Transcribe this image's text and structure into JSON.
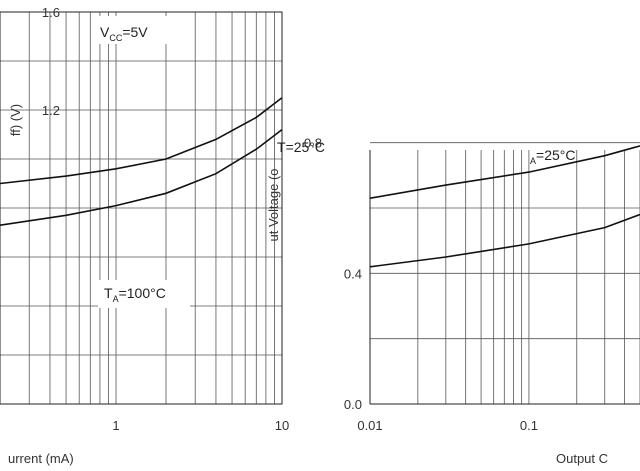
{
  "chart_data": [
    {
      "type": "line",
      "xscale": "log",
      "xlim": [
        0.2,
        10
      ],
      "ylim": [
        0.0,
        1.6
      ],
      "x_tick_labels": [
        "1",
        "10"
      ],
      "y_tick_labels": [
        "1.6",
        "1.2"
      ],
      "xlabel": "urrent (mA)",
      "ylabel": "ff) (V)",
      "annotations": [
        {
          "main": "V",
          "sub": "CC",
          "rest": "=5V"
        },
        {
          "main": "T",
          "sub": "A",
          "rest": "=100°C"
        }
      ],
      "series": [
        {
          "x": [
            0.2,
            0.5,
            1,
            2,
            4,
            7,
            10
          ],
          "y": [
            0.9,
            0.93,
            0.96,
            1.0,
            1.08,
            1.17,
            1.25
          ]
        },
        {
          "x": [
            0.2,
            0.5,
            1,
            2,
            4,
            7,
            10
          ],
          "y": [
            0.73,
            0.77,
            0.81,
            0.86,
            0.94,
            1.04,
            1.12
          ]
        }
      ]
    },
    {
      "type": "line",
      "xscale": "log",
      "xlim": [
        0.01,
        0.5
      ],
      "ylim": [
        0.0,
        1.2
      ],
      "x_tick_labels": [
        "0.01",
        "0.1"
      ],
      "y_tick_labels": [
        "0.8",
        "0.4",
        "0.0"
      ],
      "xlabel": "Output C",
      "ylabel": "ut Voltage (o",
      "annotations": [
        {
          "main": "T",
          "sub": "",
          "rest": "=25°C"
        },
        {
          "main": "",
          "sub": "A",
          "rest": "=25°C"
        }
      ],
      "series": [
        {
          "x": [
            0.01,
            0.03,
            0.1,
            0.3,
            0.5
          ],
          "y": [
            0.63,
            0.67,
            0.71,
            0.76,
            0.79
          ]
        },
        {
          "x": [
            0.01,
            0.03,
            0.1,
            0.3,
            0.5
          ],
          "y": [
            0.42,
            0.45,
            0.49,
            0.54,
            0.58
          ]
        }
      ]
    }
  ]
}
